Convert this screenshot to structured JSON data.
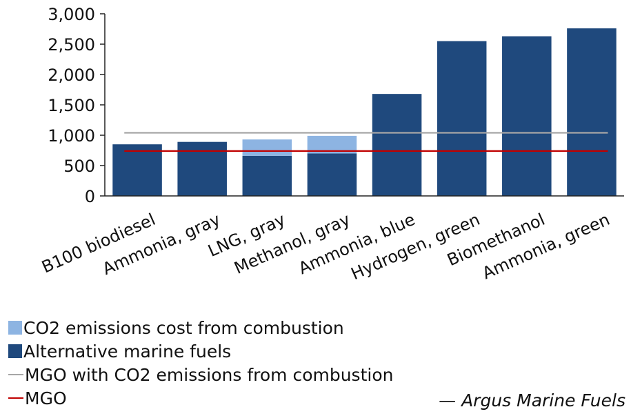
{
  "chart_data": {
    "type": "bar",
    "stacked": true,
    "categories": [
      "B100 biodiesel",
      "Ammonia, gray",
      "LNG, gray",
      "Methanol, gray",
      "Ammonia, blue",
      "Hydrogen, green",
      "Biomethanol",
      "Ammonia, green"
    ],
    "series": [
      {
        "name": "Alternative marine fuels",
        "color": "#1F497D",
        "values": [
          850,
          890,
          660,
          700,
          1680,
          2550,
          2630,
          2760
        ]
      },
      {
        "name": "CO2 emissions cost from combustion",
        "color": "#8DB4E2",
        "values": [
          0,
          0,
          270,
          290,
          0,
          0,
          0,
          0
        ]
      }
    ],
    "lines": [
      {
        "name": "MGO with CO2 emissions from combustion",
        "color": "#A6A6A6",
        "value": 1040
      },
      {
        "name": "MGO",
        "color": "#C00000",
        "value": 740
      }
    ],
    "ylim": [
      0,
      3000
    ],
    "yticks": [
      "0",
      "500",
      "1,000",
      "1,500",
      "2,000",
      "2,500",
      "3,000"
    ],
    "xlabel": "",
    "ylabel": "",
    "legend_position": "bottom-left"
  },
  "source": "— Argus Marine Fuels"
}
